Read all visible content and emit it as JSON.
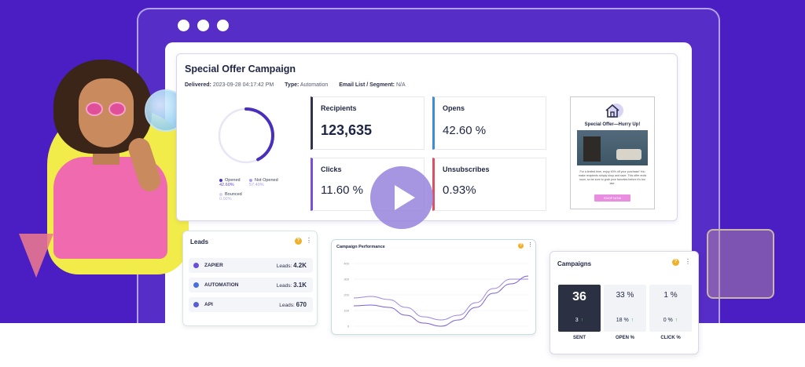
{
  "campaign": {
    "title": "Special Offer Campaign",
    "delivered_label": "Delivered:",
    "delivered_value": "2023-09-28 04:17:42 PM",
    "type_label": "Type:",
    "type_value": "Automation",
    "list_label": "Email List / Segment:",
    "list_value": "N/A",
    "donut": {
      "opened_fraction": 0.426,
      "legend": [
        {
          "label": "Opened",
          "value": "42.60%",
          "color": "#4a2fbd"
        },
        {
          "label": "Not Opened",
          "value": "57.40%",
          "color": "#a89cf0"
        },
        {
          "label": "Bounced",
          "value": "0.00%",
          "color": "#d6d2f5"
        }
      ]
    },
    "stats": {
      "recipients": {
        "label": "Recipients",
        "value": "123,635",
        "accent": "#2f3352"
      },
      "opens": {
        "label": "Opens",
        "value": "42.60 %",
        "accent": "#3c8dd8"
      },
      "clicks": {
        "label": "Clicks",
        "value": "11.60 %",
        "accent": "#7a4fd8"
      },
      "unsubscribes": {
        "label": "Unsubscribes",
        "value": "0.93%",
        "accent": "#e04f5f"
      }
    },
    "email_preview": {
      "title": "Special Offer—Hurry Up!",
      "body": "For a limited time, enjoy 40% off your purchase! You make recipients simply shop and save. This offer ends soon, so be sure to grab your favorites before it's too late.",
      "button": "SHOP NOW"
    }
  },
  "leads": {
    "title": "Leads",
    "rows": [
      {
        "name": "ZAPIER",
        "label": "Leads:",
        "count": "4.2K",
        "icon_color": "#6a4fd8"
      },
      {
        "name": "AUTOMATION",
        "label": "Leads:",
        "count": "3.1K",
        "icon_color": "#4a6fd8"
      },
      {
        "name": "API",
        "label": "Leads:",
        "count": "670",
        "icon_color": "#5a5fd0"
      }
    ]
  },
  "performance": {
    "title": "Campaign Performance",
    "y_ticks": [
      "400",
      "300",
      "200",
      "100",
      "0"
    ]
  },
  "chart_data": {
    "type": "line",
    "title": "Campaign Performance",
    "ylim": [
      0,
      400
    ],
    "y_ticks": [
      0,
      100,
      200,
      300,
      400
    ],
    "x": [
      0,
      1,
      2,
      3,
      4,
      5,
      6,
      7,
      8,
      9,
      10
    ],
    "series": [
      {
        "values": [
          180,
          190,
          170,
          120,
          60,
          40,
          70,
          150,
          240,
          300,
          300
        ],
        "color": "#9d86e8"
      },
      {
        "values": [
          130,
          135,
          120,
          70,
          20,
          0,
          40,
          120,
          210,
          270,
          320
        ],
        "color": "#7a5fd8"
      }
    ]
  },
  "campaigns": {
    "title": "Campaigns",
    "tiles": [
      {
        "value": "36",
        "sub": "3",
        "label": "SENT"
      },
      {
        "value": "33 %",
        "sub": "18 %",
        "label": "OPEN %"
      },
      {
        "value": "1 %",
        "sub": "0 %",
        "label": "CLICK %"
      }
    ],
    "help_glyph": "?",
    "kebab_glyph": "⋮",
    "arrow_glyph": "↑"
  }
}
